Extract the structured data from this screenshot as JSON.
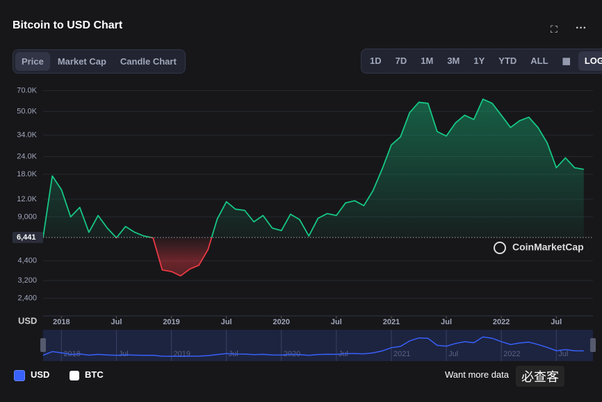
{
  "ui": {
    "tabs": [
      "Price",
      "Market Cap",
      "Candle Chart"
    ],
    "ranges": [
      "1D",
      "7D",
      "1M",
      "3M",
      "1Y",
      "YTD",
      "ALL"
    ],
    "log": "LOG",
    "brand": "CoinMarketCap",
    "btc": "BTC",
    "footer": "Want more data",
    "overlay": "必查客"
  },
  "chart_data": {
    "type": "line",
    "title": "Bitcoin to USD Chart",
    "ylabel": "USD",
    "log_scale": true,
    "grid": true,
    "baseline": {
      "value": 6441,
      "label": "6,441"
    },
    "down_color": "#ea3943",
    "x": [
      "2017-11",
      "2017-12",
      "2018-01",
      "2018-02",
      "2018-03",
      "2018-04",
      "2018-05",
      "2018-06",
      "2018-07",
      "2018-08",
      "2018-09",
      "2018-10",
      "2018-11",
      "2018-12",
      "2019-01",
      "2019-02",
      "2019-03",
      "2019-04",
      "2019-05",
      "2019-06",
      "2019-07",
      "2019-08",
      "2019-09",
      "2019-10",
      "2019-11",
      "2019-12",
      "2020-01",
      "2020-02",
      "2020-03",
      "2020-04",
      "2020-05",
      "2020-06",
      "2020-07",
      "2020-08",
      "2020-09",
      "2020-10",
      "2020-11",
      "2020-12",
      "2021-01",
      "2021-02",
      "2021-03",
      "2021-04",
      "2021-05",
      "2021-06",
      "2021-07",
      "2021-08",
      "2021-09",
      "2021-10",
      "2021-11",
      "2021-12",
      "2022-01",
      "2022-02",
      "2022-03",
      "2022-04",
      "2022-05",
      "2022-06",
      "2022-07",
      "2022-08",
      "2022-09",
      "2022-10"
    ],
    "series": [
      {
        "name": "USD",
        "color": "#16c784",
        "values": [
          6441,
          17500,
          14000,
          9000,
          10500,
          7000,
          9200,
          7500,
          6400,
          7700,
          7000,
          6600,
          6400,
          3800,
          3700,
          3450,
          3850,
          4100,
          5300,
          8700,
          11500,
          10200,
          10000,
          8300,
          9200,
          7500,
          7200,
          9400,
          8600,
          6600,
          8800,
          9500,
          9200,
          11300,
          11700,
          10800,
          13800,
          19600,
          29000,
          33000,
          49000,
          58000,
          57000,
          36000,
          33500,
          41500,
          47000,
          43800,
          61000,
          57000,
          47000,
          38500,
          43000,
          45500,
          38500,
          30000,
          20000,
          23500,
          20000,
          19500
        ]
      }
    ],
    "xlim": [
      "2017-11",
      "2022-11"
    ],
    "xticks": [
      {
        "value": "2018-01",
        "label": "2018"
      },
      {
        "value": "2018-07",
        "label": "Jul"
      },
      {
        "value": "2019-01",
        "label": "2019"
      },
      {
        "value": "2019-07",
        "label": "Jul"
      },
      {
        "value": "2020-01",
        "label": "2020"
      },
      {
        "value": "2020-07",
        "label": "Jul"
      },
      {
        "value": "2021-01",
        "label": "2021"
      },
      {
        "value": "2021-07",
        "label": "Jul"
      },
      {
        "value": "2022-01",
        "label": "2022"
      },
      {
        "value": "2022-07",
        "label": "Jul"
      }
    ],
    "ylim": [
      1800,
      78000
    ],
    "yticks": [
      {
        "value": 2400,
        "label": "2,400"
      },
      {
        "value": 3200,
        "label": "3,200"
      },
      {
        "value": 4400,
        "label": "4,400"
      },
      {
        "value": 9000,
        "label": "9,000"
      },
      {
        "value": 12000,
        "label": "12.0K"
      },
      {
        "value": 18000,
        "label": "18.0K"
      },
      {
        "value": 24000,
        "label": "24.0K"
      },
      {
        "value": 34000,
        "label": "34.0K"
      },
      {
        "value": 50000,
        "label": "50.0K"
      },
      {
        "value": 70000,
        "label": "70.0K"
      }
    ]
  }
}
